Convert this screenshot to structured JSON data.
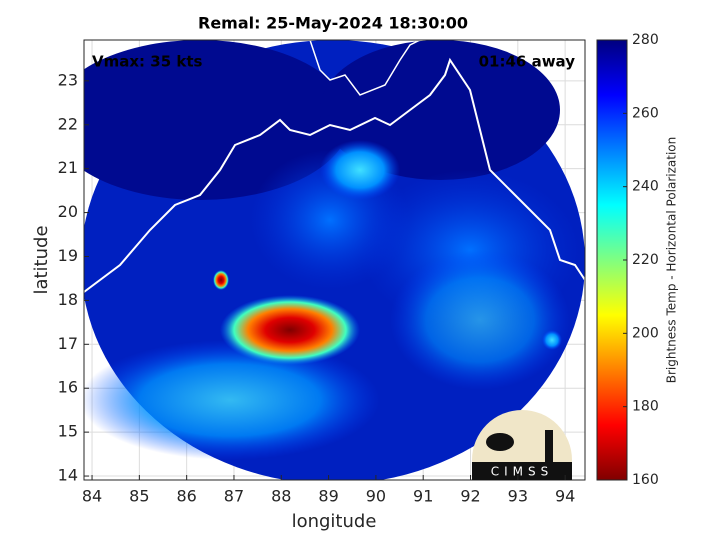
{
  "chart_data": {
    "type": "map",
    "title": "Remal: 25-May-2024 18:30:00",
    "annotations": [
      "Vmax: 35 kts",
      "01:46 away"
    ],
    "x_label": "longitude",
    "y_label": "latitude",
    "xlim": [
      83.83,
      94.42
    ],
    "xticks": [
      84,
      85,
      86,
      87,
      88,
      89,
      90,
      91,
      92,
      93,
      94
    ],
    "ylim": [
      13.91,
      23.93
    ],
    "yticks": [
      14,
      15,
      16,
      17,
      18,
      19,
      20,
      21,
      22,
      23
    ],
    "grid": true,
    "colorbar": {
      "label": "Brightness Temp - Horizontal Polarization",
      "lim": [
        160,
        280
      ],
      "ticks": [
        160,
        180,
        200,
        220,
        240,
        260,
        280
      ],
      "colormap": [
        "#800000",
        "#ff0000",
        "#ff8000",
        "#ffff00",
        "#80ff80",
        "#00ffff",
        "#0080ff",
        "#0000ff",
        "#000080"
      ]
    },
    "logo": "CIMSS"
  }
}
